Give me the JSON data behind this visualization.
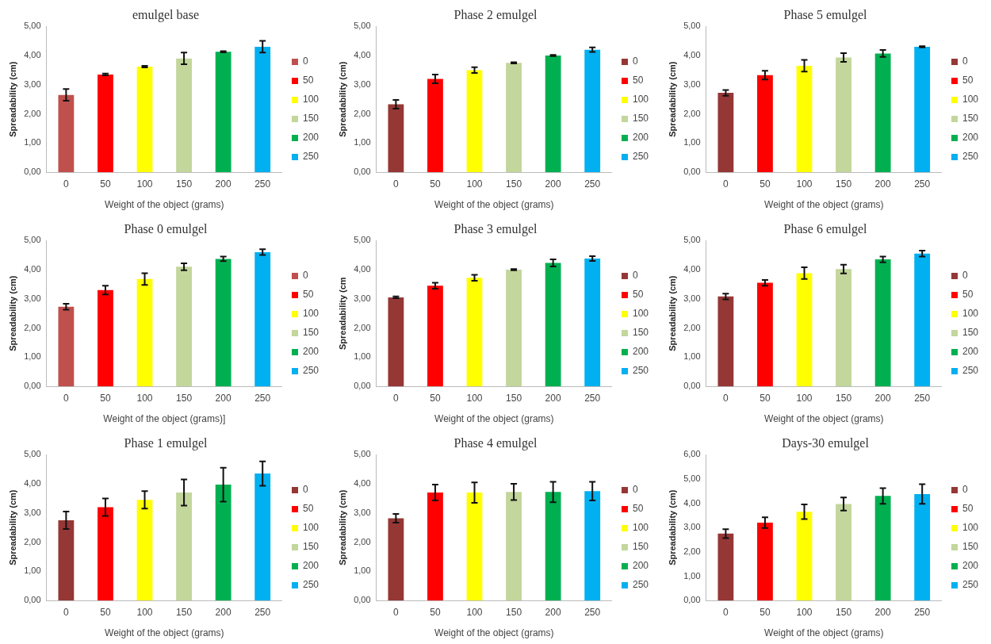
{
  "chart_data": [
    {
      "type": "bar",
      "title": "emulgel base",
      "xlabel": "Weight of the object (grams)",
      "ylabel": "Spreadability (cm)",
      "categories": [
        "0",
        "50",
        "100",
        "150",
        "200",
        "250"
      ],
      "series": [
        {
          "name": "0",
          "color": "#c0504d",
          "values": [
            2.65,
            null,
            null,
            null,
            null,
            null
          ],
          "errors": [
            0.2,
            null,
            null,
            null,
            null,
            null
          ]
        },
        {
          "name": "50",
          "color": "#ff0000",
          "values": [
            null,
            3.35,
            null,
            null,
            null,
            null
          ],
          "errors": [
            null,
            0.03,
            null,
            null,
            null,
            null
          ]
        },
        {
          "name": "100",
          "color": "#ffff00",
          "values": [
            null,
            null,
            3.62,
            null,
            null,
            null
          ],
          "errors": [
            null,
            null,
            0.03,
            null,
            null,
            null
          ]
        },
        {
          "name": "150",
          "color": "#c3d69b",
          "values": [
            null,
            null,
            null,
            3.9,
            null,
            null
          ],
          "errors": [
            null,
            null,
            null,
            0.2,
            null,
            null
          ]
        },
        {
          "name": "200",
          "color": "#00b050",
          "values": [
            null,
            null,
            null,
            null,
            4.13,
            null
          ],
          "errors": [
            null,
            null,
            null,
            null,
            0.02,
            null
          ]
        },
        {
          "name": "250",
          "color": "#00b0f0",
          "values": [
            null,
            null,
            null,
            null,
            null,
            4.3
          ],
          "errors": [
            null,
            null,
            null,
            null,
            null,
            0.2
          ]
        }
      ],
      "ylim": [
        0,
        5
      ],
      "yticks": [
        {
          "value": 0,
          "label": "0,00"
        },
        {
          "value": 1,
          "label": "1,00"
        },
        {
          "value": 2,
          "label": "2,00"
        },
        {
          "value": 3,
          "label": "3,00"
        },
        {
          "value": 4,
          "label": "4,00"
        },
        {
          "value": 5,
          "label": "5,00"
        }
      ],
      "legend": "right",
      "grid": false
    },
    {
      "type": "bar",
      "title": "Phase 2 emulgel",
      "xlabel": "Weight of the object (grams)",
      "ylabel": "Spreadability (cm)",
      "categories": [
        "0",
        "50",
        "100",
        "150",
        "200",
        "250"
      ],
      "series": [
        {
          "name": "0",
          "color": "#953735",
          "values": [
            2.33,
            null,
            null,
            null,
            null,
            null
          ],
          "errors": [
            0.15,
            null,
            null,
            null,
            null,
            null
          ]
        },
        {
          "name": "50",
          "color": "#ff0000",
          "values": [
            null,
            3.2,
            null,
            null,
            null,
            null
          ],
          "errors": [
            null,
            0.15,
            null,
            null,
            null,
            null
          ]
        },
        {
          "name": "100",
          "color": "#ffff00",
          "values": [
            null,
            null,
            3.5,
            null,
            null,
            null
          ],
          "errors": [
            null,
            null,
            0.1,
            null,
            null,
            null
          ]
        },
        {
          "name": "150",
          "color": "#c3d69b",
          "values": [
            null,
            null,
            null,
            3.75,
            null,
            null
          ],
          "errors": [
            null,
            null,
            null,
            0.02,
            null,
            null
          ]
        },
        {
          "name": "200",
          "color": "#00b050",
          "values": [
            null,
            null,
            null,
            null,
            4.0,
            null
          ],
          "errors": [
            null,
            null,
            null,
            null,
            0.02,
            null
          ]
        },
        {
          "name": "250",
          "color": "#00b0f0",
          "values": [
            null,
            null,
            null,
            null,
            null,
            4.2
          ],
          "errors": [
            null,
            null,
            null,
            null,
            null,
            0.08
          ]
        }
      ],
      "ylim": [
        0,
        5
      ],
      "yticks": [
        {
          "value": 0,
          "label": "0,00"
        },
        {
          "value": 1,
          "label": "1,00"
        },
        {
          "value": 2,
          "label": "2,00"
        },
        {
          "value": 3,
          "label": "3,00"
        },
        {
          "value": 4,
          "label": "4,00"
        },
        {
          "value": 5,
          "label": "5,00"
        }
      ],
      "legend": "right",
      "grid": false
    },
    {
      "type": "bar",
      "title": "Phase 5 emulgel",
      "xlabel": "Weight of the object (grams)",
      "ylabel": "Spreadability (cm)",
      "categories": [
        "0",
        "50",
        "100",
        "150",
        "200",
        "250"
      ],
      "series": [
        {
          "name": "0",
          "color": "#953735",
          "values": [
            2.72,
            null,
            null,
            null,
            null,
            null
          ],
          "errors": [
            0.1,
            null,
            null,
            null,
            null,
            null
          ]
        },
        {
          "name": "50",
          "color": "#ff0000",
          "values": [
            null,
            3.33,
            null,
            null,
            null,
            null
          ],
          "errors": [
            null,
            0.15,
            null,
            null,
            null,
            null
          ]
        },
        {
          "name": "100",
          "color": "#ffff00",
          "values": [
            null,
            null,
            3.65,
            null,
            null,
            null
          ],
          "errors": [
            null,
            null,
            0.2,
            null,
            null,
            null
          ]
        },
        {
          "name": "150",
          "color": "#c3d69b",
          "values": [
            null,
            null,
            null,
            3.93,
            null,
            null
          ],
          "errors": [
            null,
            null,
            null,
            0.15,
            null,
            null
          ]
        },
        {
          "name": "200",
          "color": "#00b050",
          "values": [
            null,
            null,
            null,
            null,
            4.07,
            null
          ],
          "errors": [
            null,
            null,
            null,
            null,
            0.12,
            null
          ]
        },
        {
          "name": "250",
          "color": "#00b0f0",
          "values": [
            null,
            null,
            null,
            null,
            null,
            4.3
          ],
          "errors": [
            null,
            null,
            null,
            null,
            null,
            0.02
          ]
        }
      ],
      "ylim": [
        0,
        5
      ],
      "yticks": [
        {
          "value": 0,
          "label": "0,00"
        },
        {
          "value": 1,
          "label": "1,00"
        },
        {
          "value": 2,
          "label": "2,00"
        },
        {
          "value": 3,
          "label": "3,00"
        },
        {
          "value": 4,
          "label": "4,00"
        },
        {
          "value": 5,
          "label": "5,00"
        }
      ],
      "legend": "right",
      "grid": false
    },
    {
      "type": "bar",
      "title": "Phase 0 emulgel",
      "xlabel": "Weight of the object (grams)]",
      "ylabel": "Spreadability (cm)",
      "categories": [
        "0",
        "50",
        "100",
        "150",
        "200",
        "250"
      ],
      "series": [
        {
          "name": "0",
          "color": "#c0504d",
          "values": [
            2.73,
            null,
            null,
            null,
            null,
            null
          ],
          "errors": [
            0.1,
            null,
            null,
            null,
            null,
            null
          ]
        },
        {
          "name": "50",
          "color": "#ff0000",
          "values": [
            null,
            3.3,
            null,
            null,
            null,
            null
          ],
          "errors": [
            null,
            0.15,
            null,
            null,
            null,
            null
          ]
        },
        {
          "name": "100",
          "color": "#ffff00",
          "values": [
            null,
            null,
            3.68,
            null,
            null,
            null
          ],
          "errors": [
            null,
            null,
            0.2,
            null,
            null,
            null
          ]
        },
        {
          "name": "150",
          "color": "#c3d69b",
          "values": [
            null,
            null,
            null,
            4.1,
            null,
            null
          ],
          "errors": [
            null,
            null,
            null,
            0.12,
            null,
            null
          ]
        },
        {
          "name": "200",
          "color": "#00b050",
          "values": [
            null,
            null,
            null,
            null,
            4.37,
            null
          ],
          "errors": [
            null,
            null,
            null,
            null,
            0.08,
            null
          ]
        },
        {
          "name": "250",
          "color": "#00b0f0",
          "values": [
            null,
            null,
            null,
            null,
            null,
            4.6
          ],
          "errors": [
            null,
            null,
            null,
            null,
            null,
            0.1
          ]
        }
      ],
      "ylim": [
        0,
        5
      ],
      "yticks": [
        {
          "value": 0,
          "label": "0,00"
        },
        {
          "value": 1,
          "label": "1,00"
        },
        {
          "value": 2,
          "label": "2,00"
        },
        {
          "value": 3,
          "label": "3,00"
        },
        {
          "value": 4,
          "label": "4,00"
        },
        {
          "value": 5,
          "label": "5,00"
        }
      ],
      "legend": "right",
      "grid": false
    },
    {
      "type": "bar",
      "title": "Phase 3 emulgel",
      "xlabel": "Weight of the object (grams)",
      "ylabel": "Spreadability (cm",
      "categories": [
        "0",
        "50",
        "100",
        "150",
        "200",
        "250"
      ],
      "series": [
        {
          "name": "0",
          "color": "#953735",
          "values": [
            3.05,
            null,
            null,
            null,
            null,
            null
          ],
          "errors": [
            0.03,
            null,
            null,
            null,
            null,
            null
          ]
        },
        {
          "name": "50",
          "color": "#ff0000",
          "values": [
            null,
            3.45,
            null,
            null,
            null,
            null
          ],
          "errors": [
            null,
            0.1,
            null,
            null,
            null,
            null
          ]
        },
        {
          "name": "100",
          "color": "#ffff00",
          "values": [
            null,
            null,
            3.72,
            null,
            null,
            null
          ],
          "errors": [
            null,
            null,
            0.1,
            null,
            null,
            null
          ]
        },
        {
          "name": "150",
          "color": "#c3d69b",
          "values": [
            null,
            null,
            null,
            4.0,
            null,
            null
          ],
          "errors": [
            null,
            null,
            null,
            0.02,
            null,
            null
          ]
        },
        {
          "name": "200",
          "color": "#00b050",
          "values": [
            null,
            null,
            null,
            null,
            4.23,
            null
          ],
          "errors": [
            null,
            null,
            null,
            null,
            0.12,
            null
          ]
        },
        {
          "name": "250",
          "color": "#00b0f0",
          "values": [
            null,
            null,
            null,
            null,
            null,
            4.38
          ],
          "errors": [
            null,
            null,
            null,
            null,
            null,
            0.08
          ]
        }
      ],
      "ylim": [
        0,
        5
      ],
      "yticks": [
        {
          "value": 0,
          "label": "0,00"
        },
        {
          "value": 1,
          "label": "1,00"
        },
        {
          "value": 2,
          "label": "2,00"
        },
        {
          "value": 3,
          "label": "3,00"
        },
        {
          "value": 4,
          "label": "4,00"
        },
        {
          "value": 5,
          "label": "5,00"
        }
      ],
      "legend": "right",
      "grid": false
    },
    {
      "type": "bar",
      "title": "Phase 6 emulgel",
      "xlabel": "Weight of the object (grams)",
      "ylabel": "Spreadability (cm)",
      "categories": [
        "0",
        "50",
        "100",
        "150",
        "200",
        "250"
      ],
      "series": [
        {
          "name": "0",
          "color": "#953735",
          "values": [
            3.08,
            null,
            null,
            null,
            null,
            null
          ],
          "errors": [
            0.1,
            null,
            null,
            null,
            null,
            null
          ]
        },
        {
          "name": "50",
          "color": "#ff0000",
          "values": [
            null,
            3.55,
            null,
            null,
            null,
            null
          ],
          "errors": [
            null,
            0.1,
            null,
            null,
            null,
            null
          ]
        },
        {
          "name": "100",
          "color": "#ffff00",
          "values": [
            null,
            null,
            3.88,
            null,
            null,
            null
          ],
          "errors": [
            null,
            null,
            0.2,
            null,
            null,
            null
          ]
        },
        {
          "name": "150",
          "color": "#c3d69b",
          "values": [
            null,
            null,
            null,
            4.02,
            null,
            null
          ],
          "errors": [
            null,
            null,
            null,
            0.15,
            null,
            null
          ]
        },
        {
          "name": "200",
          "color": "#00b050",
          "values": [
            null,
            null,
            null,
            null,
            4.35,
            null
          ],
          "errors": [
            null,
            null,
            null,
            null,
            0.1,
            null
          ]
        },
        {
          "name": "250",
          "color": "#00b0f0",
          "values": [
            null,
            null,
            null,
            null,
            null,
            4.55
          ],
          "errors": [
            null,
            null,
            null,
            null,
            null,
            0.1
          ]
        }
      ],
      "ylim": [
        0,
        5
      ],
      "yticks": [
        {
          "value": 0,
          "label": "0,00"
        },
        {
          "value": 1,
          "label": "1,00"
        },
        {
          "value": 2,
          "label": "2,00"
        },
        {
          "value": 3,
          "label": "3,00"
        },
        {
          "value": 4,
          "label": "4,00"
        },
        {
          "value": 5,
          "label": "5,00"
        }
      ],
      "legend": "right",
      "grid": false
    },
    {
      "type": "bar",
      "title": "Phase 1 emulgel",
      "xlabel": "Weight of the object (grams)",
      "ylabel": "Spreadability (cm)",
      "categories": [
        "0",
        "50",
        "100",
        "150",
        "200",
        "250"
      ],
      "series": [
        {
          "name": "0",
          "color": "#953735",
          "values": [
            2.75,
            null,
            null,
            null,
            null,
            null
          ],
          "errors": [
            0.3,
            null,
            null,
            null,
            null,
            null
          ]
        },
        {
          "name": "50",
          "color": "#ff0000",
          "values": [
            null,
            3.2,
            null,
            null,
            null,
            null
          ],
          "errors": [
            null,
            0.3,
            null,
            null,
            null,
            null
          ]
        },
        {
          "name": "100",
          "color": "#ffff00",
          "values": [
            null,
            null,
            3.45,
            null,
            null,
            null
          ],
          "errors": [
            null,
            null,
            0.3,
            null,
            null,
            null
          ]
        },
        {
          "name": "150",
          "color": "#c3d69b",
          "values": [
            null,
            null,
            null,
            3.7,
            null,
            null
          ],
          "errors": [
            null,
            null,
            null,
            0.45,
            null,
            null
          ]
        },
        {
          "name": "200",
          "color": "#00b050",
          "values": [
            null,
            null,
            null,
            null,
            3.97,
            null
          ],
          "errors": [
            null,
            null,
            null,
            null,
            0.58,
            null
          ]
        },
        {
          "name": "250",
          "color": "#00b0f0",
          "values": [
            null,
            null,
            null,
            null,
            null,
            4.35
          ],
          "errors": [
            null,
            null,
            null,
            null,
            null,
            0.42
          ]
        }
      ],
      "ylim": [
        0,
        5
      ],
      "yticks": [
        {
          "value": 0,
          "label": "0,00"
        },
        {
          "value": 1,
          "label": "1,00"
        },
        {
          "value": 2,
          "label": "2,00"
        },
        {
          "value": 3,
          "label": "3,00"
        },
        {
          "value": 4,
          "label": "4,00"
        },
        {
          "value": 5,
          "label": "5,00"
        }
      ],
      "legend": "right",
      "grid": false
    },
    {
      "type": "bar",
      "title": "Phase 4 emulgel",
      "xlabel": "Weight of the object (grams)",
      "ylabel": "Spreadability (cm)",
      "categories": [
        "0",
        "50",
        "100",
        "150",
        "200",
        "250"
      ],
      "series": [
        {
          "name": "0",
          "color": "#953735",
          "values": [
            2.82,
            null,
            null,
            null,
            null,
            null
          ],
          "errors": [
            0.15,
            null,
            null,
            null,
            null,
            null
          ]
        },
        {
          "name": "50",
          "color": "#ff0000",
          "values": [
            null,
            3.7,
            null,
            null,
            null,
            null
          ],
          "errors": [
            null,
            0.27,
            null,
            null,
            null,
            null
          ]
        },
        {
          "name": "100",
          "color": "#ffff00",
          "values": [
            null,
            null,
            3.7,
            null,
            null,
            null
          ],
          "errors": [
            null,
            null,
            0.35,
            null,
            null,
            null
          ]
        },
        {
          "name": "150",
          "color": "#c3d69b",
          "values": [
            null,
            null,
            null,
            3.72,
            null,
            null
          ],
          "errors": [
            null,
            null,
            null,
            0.28,
            null,
            null
          ]
        },
        {
          "name": "200",
          "color": "#00b050",
          "values": [
            null,
            null,
            null,
            null,
            3.72,
            null
          ],
          "errors": [
            null,
            null,
            null,
            null,
            0.35,
            null
          ]
        },
        {
          "name": "250",
          "color": "#00b0f0",
          "values": [
            null,
            null,
            null,
            null,
            null,
            3.75
          ],
          "errors": [
            null,
            null,
            null,
            null,
            null,
            0.32
          ]
        }
      ],
      "ylim": [
        0,
        5
      ],
      "yticks": [
        {
          "value": 0,
          "label": "0,00"
        },
        {
          "value": 1,
          "label": "1,00"
        },
        {
          "value": 2,
          "label": "2,00"
        },
        {
          "value": 3,
          "label": "3,00"
        },
        {
          "value": 4,
          "label": "4,00"
        },
        {
          "value": 5,
          "label": "5,00"
        }
      ],
      "legend": "right",
      "grid": false
    },
    {
      "type": "bar",
      "title": "Days-30 emulgel",
      "xlabel": "Weight of the object (grams)",
      "ylabel": "Spreadability (cm)",
      "categories": [
        "0",
        "50",
        "100",
        "150",
        "200",
        "250"
      ],
      "series": [
        {
          "name": "0",
          "color": "#953735",
          "values": [
            2.75,
            null,
            null,
            null,
            null,
            null
          ],
          "errors": [
            0.18,
            null,
            null,
            null,
            null,
            null
          ]
        },
        {
          "name": "50",
          "color": "#ff0000",
          "values": [
            null,
            3.2,
            null,
            null,
            null,
            null
          ],
          "errors": [
            null,
            0.22,
            null,
            null,
            null,
            null
          ]
        },
        {
          "name": "100",
          "color": "#ffff00",
          "values": [
            null,
            null,
            3.65,
            null,
            null,
            null
          ],
          "errors": [
            null,
            null,
            0.3,
            null,
            null,
            null
          ]
        },
        {
          "name": "150",
          "color": "#c3d69b",
          "values": [
            null,
            null,
            null,
            3.97,
            null,
            null
          ],
          "errors": [
            null,
            null,
            null,
            0.27,
            null,
            null
          ]
        },
        {
          "name": "200",
          "color": "#00b050",
          "values": [
            null,
            null,
            null,
            null,
            4.3,
            null
          ],
          "errors": [
            null,
            null,
            null,
            null,
            0.32,
            null
          ]
        },
        {
          "name": "250",
          "color": "#00b0f0",
          "values": [
            null,
            null,
            null,
            null,
            null,
            4.38
          ],
          "errors": [
            null,
            null,
            null,
            null,
            null,
            0.4
          ]
        }
      ],
      "ylim": [
        0,
        6
      ],
      "yticks": [
        {
          "value": 0,
          "label": "0,00"
        },
        {
          "value": 1,
          "label": "1,00"
        },
        {
          "value": 2,
          "label": "2,00"
        },
        {
          "value": 3,
          "label": "3,00"
        },
        {
          "value": 4,
          "label": "4,00"
        },
        {
          "value": 5,
          "label": "5,00"
        },
        {
          "value": 6,
          "label": "6,00"
        }
      ],
      "legend": "right",
      "grid": false
    }
  ]
}
